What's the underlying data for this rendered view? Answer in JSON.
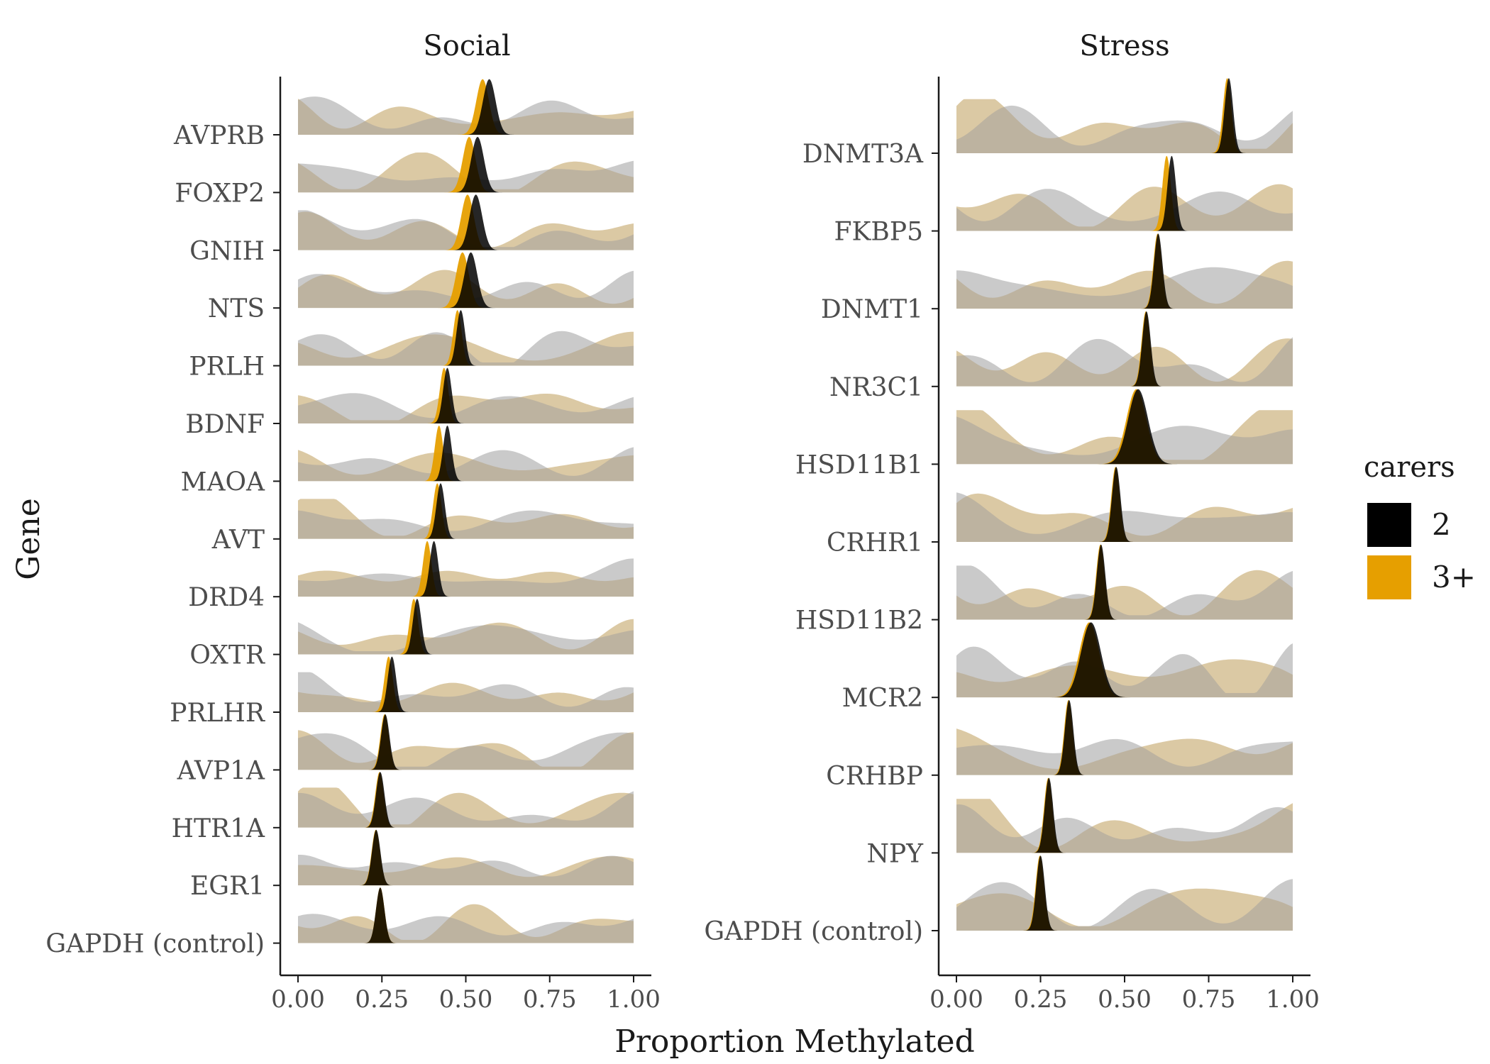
{
  "chart_data": [
    {
      "type": "ridgeline",
      "title": "Social",
      "xticks": [
        "0.00",
        "0.25",
        "0.50",
        "0.75",
        "1.00"
      ],
      "xlim": [
        0,
        1
      ],
      "genes": [
        {
          "name": "AVPRB",
          "peaks": {
            "2": 0.57,
            "3+": 0.55
          }
        },
        {
          "name": "FOXP2",
          "peaks": {
            "2": 0.535,
            "3+": 0.51
          }
        },
        {
          "name": "GNIH",
          "peaks": {
            "2": 0.53,
            "3+": 0.505
          }
        },
        {
          "name": "NTS",
          "peaks": {
            "2": 0.515,
            "3+": 0.49
          }
        },
        {
          "name": "PRLH",
          "peaks": {
            "2": 0.485,
            "3+": 0.475
          }
        },
        {
          "name": "BDNF",
          "peaks": {
            "2": 0.445,
            "3+": 0.435
          }
        },
        {
          "name": "MAOA",
          "peaks": {
            "2": 0.445,
            "3+": 0.42
          }
        },
        {
          "name": "AVT",
          "peaks": {
            "2": 0.425,
            "3+": 0.415
          }
        },
        {
          "name": "DRD4",
          "peaks": {
            "2": 0.405,
            "3+": 0.385
          }
        },
        {
          "name": "OXTR",
          "peaks": {
            "2": 0.355,
            "3+": 0.345
          }
        },
        {
          "name": "PRLHR",
          "peaks": {
            "2": 0.28,
            "3+": 0.27
          }
        },
        {
          "name": "AVP1A",
          "peaks": {
            "2": 0.26,
            "3+": 0.258
          }
        },
        {
          "name": "HTR1A",
          "peaks": {
            "2": 0.245,
            "3+": 0.243
          }
        },
        {
          "name": "EGR1",
          "peaks": {
            "2": 0.233,
            "3+": 0.232
          }
        },
        {
          "name": "GAPDH (control)",
          "peaks": {
            "2": 0.245,
            "3+": 0.245
          }
        }
      ]
    },
    {
      "type": "ridgeline",
      "title": "Stress",
      "xticks": [
        "0.00",
        "0.25",
        "0.50",
        "0.75",
        "1.00"
      ],
      "xlim": [
        0,
        1
      ],
      "genes": [
        {
          "name": "DNMT3A",
          "peaks": {
            "2": 0.81,
            "3+": 0.805
          }
        },
        {
          "name": "FKBP5",
          "peaks": {
            "2": 0.64,
            "3+": 0.625
          }
        },
        {
          "name": "DNMT1",
          "peaks": {
            "2": 0.6,
            "3+": 0.598
          }
        },
        {
          "name": "NR3C1",
          "peaks": {
            "2": 0.565,
            "3+": 0.563
          }
        },
        {
          "name": "HSD11B1",
          "peaks": {
            "2": 0.54,
            "3+": 0.535
          }
        },
        {
          "name": "CRHR1",
          "peaks": {
            "2": 0.475,
            "3+": 0.473
          }
        },
        {
          "name": "HSD11B2",
          "peaks": {
            "2": 0.43,
            "3+": 0.428
          }
        },
        {
          "name": "MCR2",
          "peaks": {
            "2": 0.4,
            "3+": 0.395
          }
        },
        {
          "name": "CRHBP",
          "peaks": {
            "2": 0.335,
            "3+": 0.333
          }
        },
        {
          "name": "NPY",
          "peaks": {
            "2": 0.275,
            "3+": 0.273
          }
        },
        {
          "name": "GAPDH (control)",
          "peaks": {
            "2": 0.25,
            "3+": 0.248
          }
        }
      ]
    }
  ],
  "xlabel": "Proportion Methylated",
  "ylabel": "Gene",
  "legend": {
    "title": "carers",
    "placement": "right",
    "items": [
      {
        "label": "2",
        "color": "#000000"
      },
      {
        "label": "3+",
        "color": "#E69F00"
      }
    ]
  },
  "colors": {
    "two": "#000000",
    "three_plus": "#E69F00",
    "background_density": "#bdbdbd",
    "overlap": "#c5b69a"
  }
}
